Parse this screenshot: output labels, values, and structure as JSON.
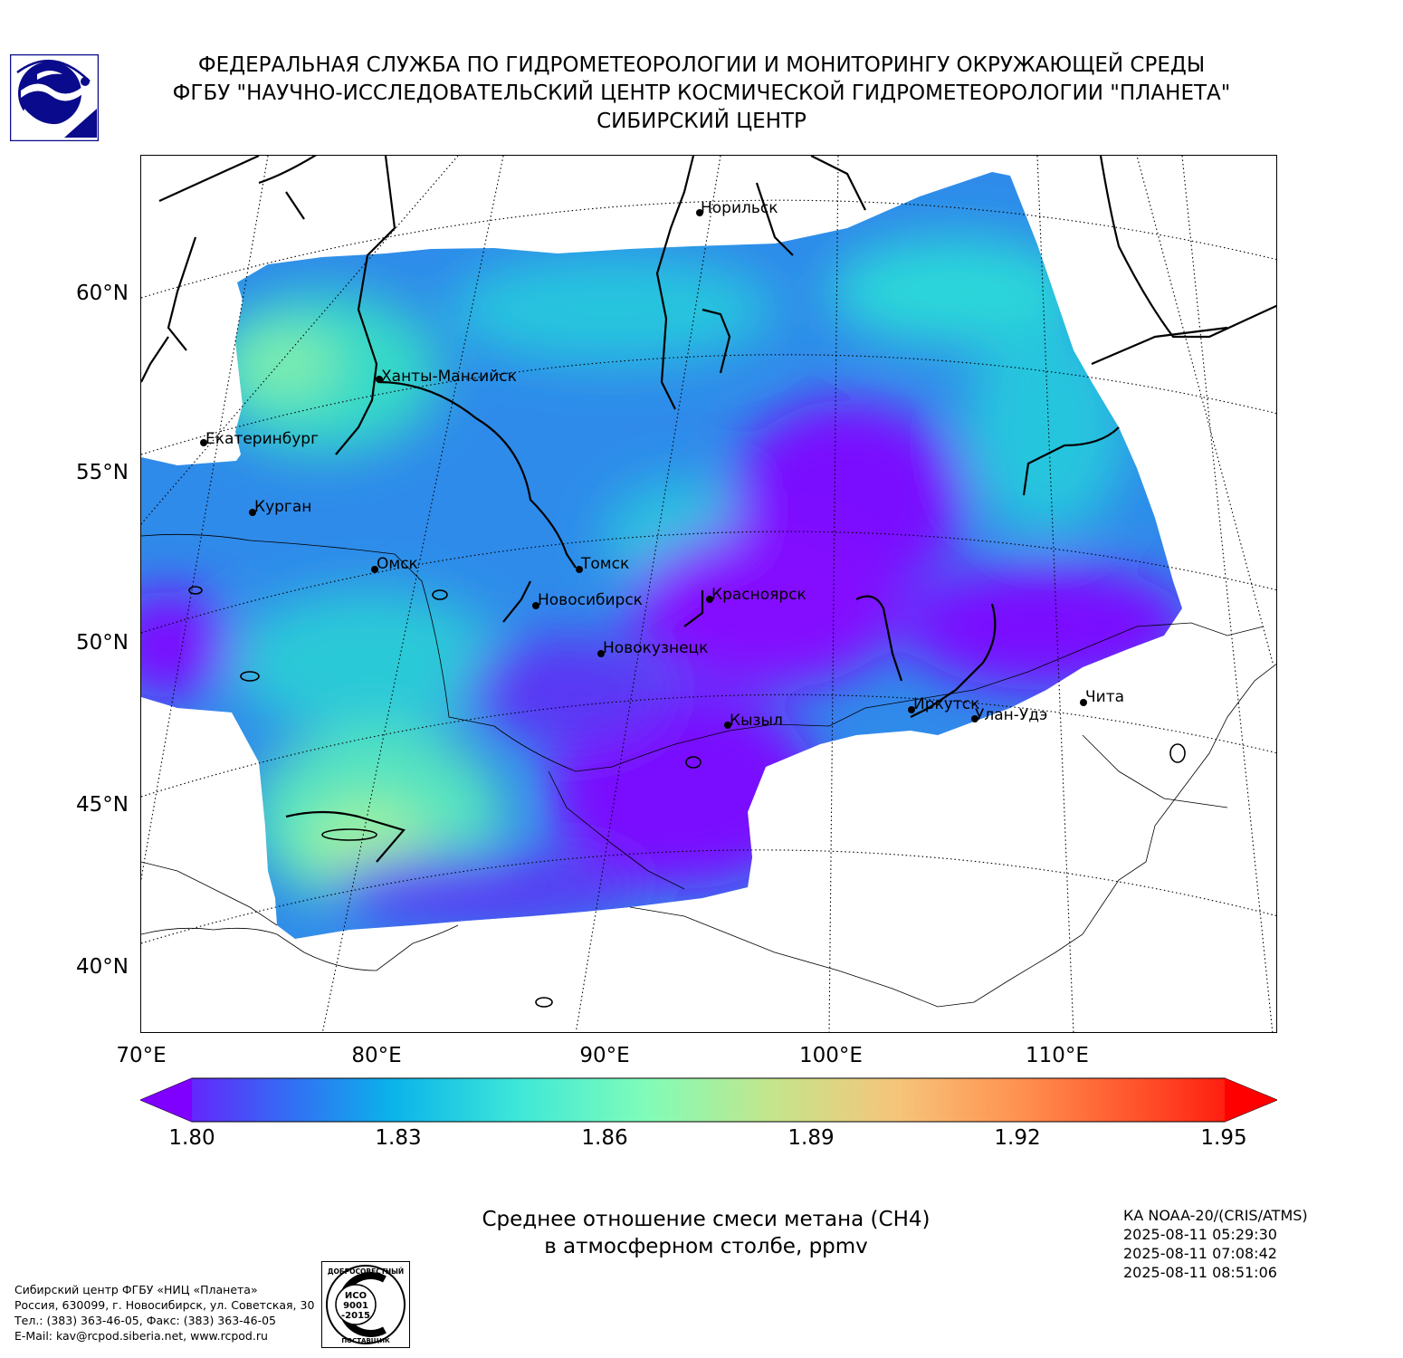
{
  "header": {
    "line1": "ФЕДЕРАЛЬНАЯ СЛУЖБА ПО ГИДРОМЕТЕОРОЛОГИИ И МОНИТОРИНГУ ОКРУЖАЮЩЕЙ СРЕДЫ",
    "line2": "ФГБУ \"НАУЧНО-ИССЛЕДОВАТЕЛЬСКИЙ ЦЕНТР КОСМИЧЕСКОЙ ГИДРОМЕТЕОРОЛОГИИ \"ПЛАНЕТА\"",
    "line3": "СИБИРСКИЙ ЦЕНТР",
    "logo_icon": "planeta-logo-icon"
  },
  "map": {
    "lat_labels": [
      "60°N",
      "55°N",
      "50°N",
      "45°N",
      "40°N"
    ],
    "lon_labels": [
      "70°E",
      "80°E",
      "90°E",
      "100°E",
      "110°E"
    ],
    "cities": [
      {
        "name": "Норильск"
      },
      {
        "name": "Ханты-Мансийск"
      },
      {
        "name": "Екатеринбург"
      },
      {
        "name": "Курган"
      },
      {
        "name": "Омск"
      },
      {
        "name": "Томск"
      },
      {
        "name": "Новосибирск"
      },
      {
        "name": "Красноярск"
      },
      {
        "name": "Новокузнецк"
      },
      {
        "name": "Иркутск"
      },
      {
        "name": "Улан-Удэ"
      },
      {
        "name": "Чита"
      },
      {
        "name": "Кызыл"
      }
    ],
    "colors": {
      "low": "#7a0cff",
      "blue": "#2f8bea",
      "cyan": "#1fd0df",
      "green": "#8af0a6"
    }
  },
  "colorbar": {
    "ticks": [
      "1.80",
      "1.83",
      "1.86",
      "1.89",
      "1.92",
      "1.95"
    ],
    "min": 1.8,
    "max": 1.95,
    "extend": "both",
    "colors": [
      "#7f00ff",
      "#3d5ef6",
      "#0ab3ea",
      "#3ee8d8",
      "#80fcb8",
      "#c4e58c",
      "#f6c47a",
      "#ff8f4e",
      "#ff4b27",
      "#ff0000"
    ]
  },
  "caption": {
    "line1": "Среднее отношение смеси метана (CH4)",
    "line2": "в атмосферном столбе, ppmv"
  },
  "meta": {
    "satellite": "КА NOAA-20/(CRIS/ATMS)",
    "times": [
      "2025-08-11 05:29:30",
      "2025-08-11 07:08:42",
      "2025-08-11 08:51:06"
    ]
  },
  "footer": {
    "org_lines": [
      "Сибирский центр ФГБУ «НИЦ «Планета»",
      "Россия, 630099, г. Новосибирск, ул. Советская, 30",
      "Тел.: (383) 363-46-05, Факс: (383) 363-46-05",
      "E-Mail: kav@rcpod.siberia.net, www.rcpod.ru"
    ],
    "iso": {
      "top": "ДОБРОСОВЕСТНЫЙ",
      "l1": "ИСО",
      "l2": "9001",
      "l3": "-2015",
      "bottom": "ПОСТАВЩИК"
    }
  }
}
